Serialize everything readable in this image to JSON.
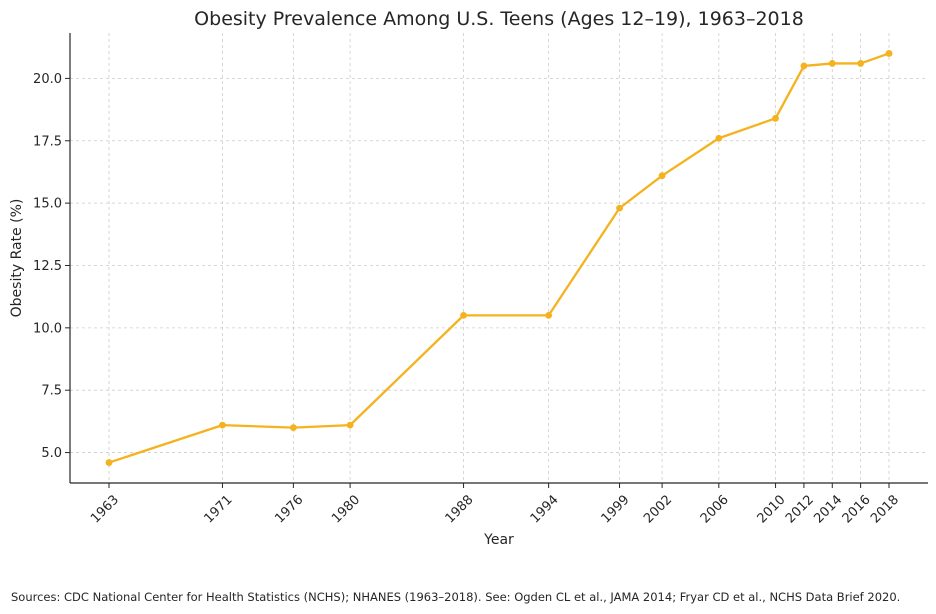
{
  "chart_data": {
    "type": "line",
    "title": "Obesity Prevalence Among U.S. Teens (Ages 12–19), 1963–2018",
    "xlabel": "Year",
    "ylabel": "Obesity Rate (%)",
    "x": [
      1963,
      1971,
      1976,
      1980,
      1988,
      1994,
      1999,
      2002,
      2006,
      2010,
      2012,
      2014,
      2016,
      2018
    ],
    "x_tick_labels": [
      "1963",
      "1971",
      "1976",
      "1980",
      "1988",
      "1994",
      "1999",
      "2002",
      "2006",
      "2010",
      "2012",
      "2014",
      "2016",
      "2018"
    ],
    "values": [
      4.6,
      6.1,
      6.0,
      6.1,
      10.5,
      10.5,
      14.8,
      16.1,
      17.6,
      18.4,
      20.5,
      20.6,
      20.6,
      21.0
    ],
    "y_ticks": [
      5.0,
      7.5,
      10.0,
      12.5,
      15.0,
      17.5,
      20.0
    ],
    "y_tick_labels": [
      "5.0",
      "7.5",
      "10.0",
      "12.5",
      "15.0",
      "17.5",
      "20.0"
    ],
    "xlim": [
      1960.25,
      2020.75
    ],
    "ylim": [
      3.78,
      21.82
    ],
    "grid": true,
    "line_color": "#F5B21F",
    "grid_color": "#cccccc",
    "axis_color": "#262626"
  },
  "footer": {
    "sources": "Sources: CDC National Center for Health Statistics (NCHS); NHANES (1963–2018). See: Ogden CL et al., JAMA 2014; Fryar CD et al., NCHS Data Brief 2020."
  }
}
